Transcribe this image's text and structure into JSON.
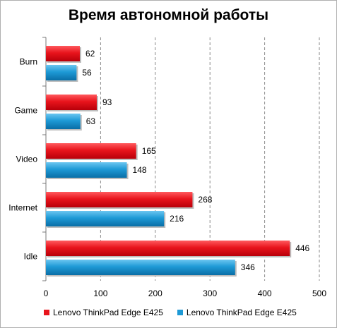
{
  "chart_data": {
    "type": "bar",
    "orientation": "horizontal",
    "title": "Время автономной работы",
    "categories": [
      "Burn",
      "Game",
      "Video",
      "Internet",
      "Idle"
    ],
    "series": [
      {
        "name": "Lenovo ThinkPad Edge E425",
        "color": "#e8141c",
        "values": [
          62,
          93,
          165,
          268,
          446
        ]
      },
      {
        "name": "Lenovo ThinkPad Edge E425",
        "color": "#1e9ad6",
        "values": [
          56,
          63,
          148,
          216,
          346
        ]
      }
    ],
    "xlim": [
      0,
      500
    ],
    "xticks": [
      0,
      100,
      200,
      300,
      400,
      500
    ],
    "grid": "vertical dashed",
    "legend_position": "bottom"
  }
}
